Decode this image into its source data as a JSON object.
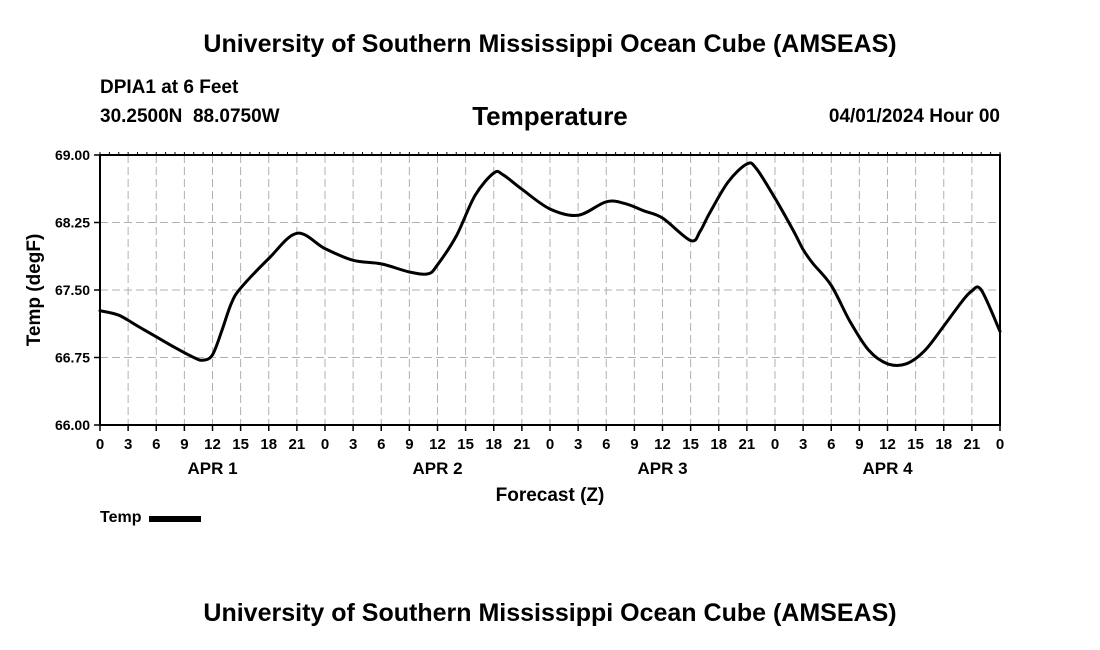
{
  "header": {
    "title": "University of Southern Mississippi Ocean Cube (AMSEAS)",
    "station": "DPIA1 at 6 Feet",
    "lat": "30.2500N",
    "lon": "88.0750W",
    "date": "04/01/2024 Hour 00"
  },
  "footer": {
    "title": "University of Southern Mississippi Ocean Cube (AMSEAS)"
  },
  "legend": {
    "label": "Temp"
  },
  "chart_data": {
    "type": "line",
    "title": "Temperature",
    "xlabel": "Forecast (Z)",
    "ylabel": "Temp (degF)",
    "ylim": [
      66.0,
      69.0
    ],
    "yticks": [
      "66.00",
      "66.75",
      "67.50",
      "68.25",
      "69.00"
    ],
    "xlim": [
      0,
      96
    ],
    "xtick_labels": [
      "0",
      "3",
      "6",
      "9",
      "12",
      "15",
      "18",
      "21",
      "0",
      "3",
      "6",
      "9",
      "12",
      "15",
      "18",
      "21",
      "0",
      "3",
      "6",
      "9",
      "12",
      "15",
      "18",
      "21",
      "0",
      "3",
      "6",
      "9",
      "12",
      "15",
      "18",
      "21",
      "0"
    ],
    "day_labels": [
      {
        "label": "APR 1",
        "hour": 12
      },
      {
        "label": "APR 2",
        "hour": 36
      },
      {
        "label": "APR 3",
        "hour": 60
      },
      {
        "label": "APR 4",
        "hour": 84
      }
    ],
    "grid": true,
    "series": [
      {
        "name": "Temp",
        "color": "#000000",
        "x": [
          0,
          2,
          4,
          6,
          8,
          10,
          11,
          12,
          13,
          14,
          15,
          18,
          21,
          24,
          27,
          30,
          33,
          35,
          36,
          38,
          40,
          42,
          43,
          45,
          48,
          51,
          54,
          56,
          58,
          60,
          63,
          64,
          65,
          67,
          69,
          70,
          72,
          74,
          75,
          76,
          78,
          80,
          82,
          84,
          86,
          88,
          90,
          92,
          93,
          94,
          96
        ],
        "values": [
          67.27,
          67.22,
          67.1,
          66.98,
          66.86,
          66.75,
          66.72,
          66.78,
          67.05,
          67.35,
          67.52,
          67.85,
          68.13,
          67.96,
          67.83,
          67.79,
          67.7,
          67.68,
          67.78,
          68.1,
          68.55,
          68.8,
          68.78,
          68.62,
          68.4,
          68.33,
          68.48,
          68.46,
          68.38,
          68.3,
          68.05,
          68.15,
          68.35,
          68.7,
          68.9,
          68.85,
          68.52,
          68.15,
          67.95,
          67.8,
          67.55,
          67.15,
          66.83,
          66.68,
          66.68,
          66.83,
          67.1,
          67.38,
          67.49,
          67.5,
          67.04
        ]
      }
    ]
  }
}
